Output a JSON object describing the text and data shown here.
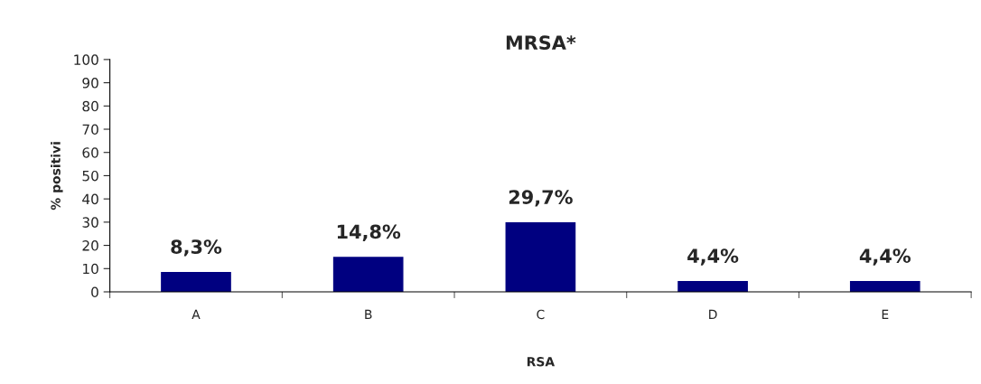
{
  "chart_data": {
    "type": "bar",
    "title": "MRSA*",
    "xlabel": "RSA",
    "ylabel": "% positivi",
    "categories": [
      "A",
      "B",
      "C",
      "D",
      "E"
    ],
    "values": [
      8.3,
      14.8,
      29.7,
      4.4,
      4.4
    ],
    "value_labels": [
      "8,3%",
      "14,8%",
      "29,7%",
      "4,4%",
      "4,4%"
    ],
    "color": "#000080",
    "ylim": [
      0,
      100
    ],
    "yticks": [
      0,
      10,
      20,
      30,
      40,
      50,
      60,
      70,
      80,
      90,
      100
    ],
    "grid": false
  }
}
